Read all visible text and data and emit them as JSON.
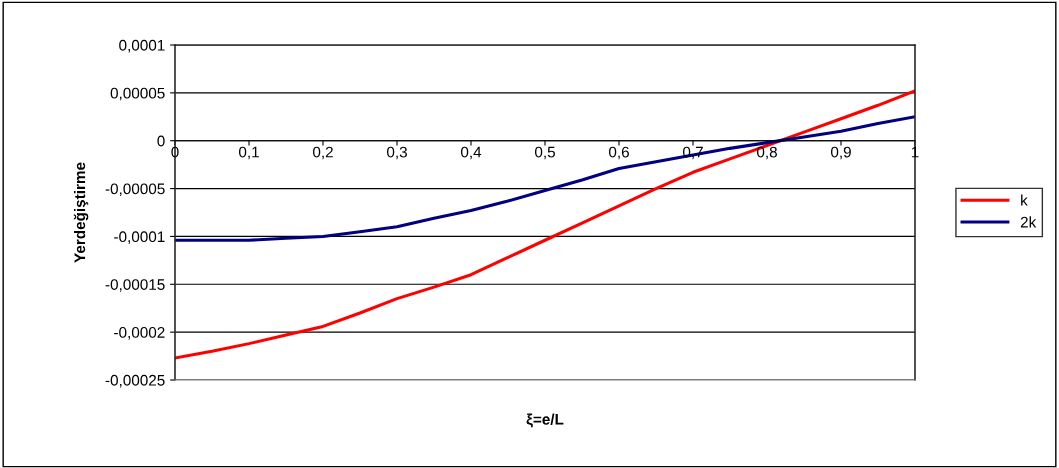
{
  "chart_data": {
    "type": "line",
    "xlabel": "ξ=e/L",
    "ylabel": "Yerdeğiştirme",
    "x": [
      0,
      0.05,
      0.1,
      0.15,
      0.2,
      0.25,
      0.3,
      0.35,
      0.4,
      0.45,
      0.5,
      0.55,
      0.6,
      0.65,
      0.7,
      0.75,
      0.8,
      0.85,
      0.9,
      0.95,
      1
    ],
    "series": [
      {
        "name": "k",
        "color": "#ff0000",
        "values": [
          -0.000227,
          -0.00022,
          -0.000212,
          -0.000203,
          -0.000194,
          -0.00018,
          -0.000165,
          -0.000153,
          -0.00014,
          -0.000122,
          -0.000104,
          -8.6e-05,
          -6.8e-05,
          -5e-05,
          -3.3e-05,
          -1.9e-05,
          -5e-06,
          9e-06,
          2.3e-05,
          3.7e-05,
          5.2e-05
        ]
      },
      {
        "name": "2k",
        "color": "#000080",
        "values": [
          -0.000104,
          -0.000104,
          -0.000104,
          -0.000102,
          -0.0001,
          -9.5e-05,
          -9e-05,
          -8.1e-05,
          -7.3e-05,
          -6.3e-05,
          -5.2e-05,
          -4.1e-05,
          -2.9e-05,
          -2.2e-05,
          -1.5e-05,
          -8e-06,
          -2e-06,
          4e-06,
          1e-05,
          1.8e-05,
          2.5e-05
        ]
      }
    ],
    "xlim": [
      0,
      1
    ],
    "xticks": [
      0,
      {
        "value": 0.1,
        "label": "0,1"
      },
      {
        "value": 0.2,
        "label": "0,2"
      },
      {
        "value": 0.3,
        "label": "0,3"
      },
      {
        "value": 0.4,
        "label": "0,4"
      },
      {
        "value": 0.5,
        "label": "0,5"
      },
      {
        "value": 0.6,
        "label": "0,6"
      },
      {
        "value": 0.7,
        "label": "0,7"
      },
      {
        "value": 0.8,
        "label": "0,8"
      },
      {
        "value": 0.9,
        "label": "0,9"
      },
      1
    ],
    "ylim": [
      -0.00025,
      0.0001
    ],
    "yticks": [
      {
        "value": -0.00025,
        "label": "-0,00025"
      },
      {
        "value": -0.0002,
        "label": "-0,0002"
      },
      {
        "value": -0.00015,
        "label": "-0,00015"
      },
      {
        "value": -0.0001,
        "label": "-0,0001"
      },
      {
        "value": -5e-05,
        "label": "-0,00005"
      },
      0,
      {
        "value": 5e-05,
        "label": "0,00005"
      },
      {
        "value": 0.0001,
        "label": "0,0001"
      }
    ],
    "grid": "y",
    "legend": "right",
    "marker": "none",
    "line_style": "solid"
  }
}
